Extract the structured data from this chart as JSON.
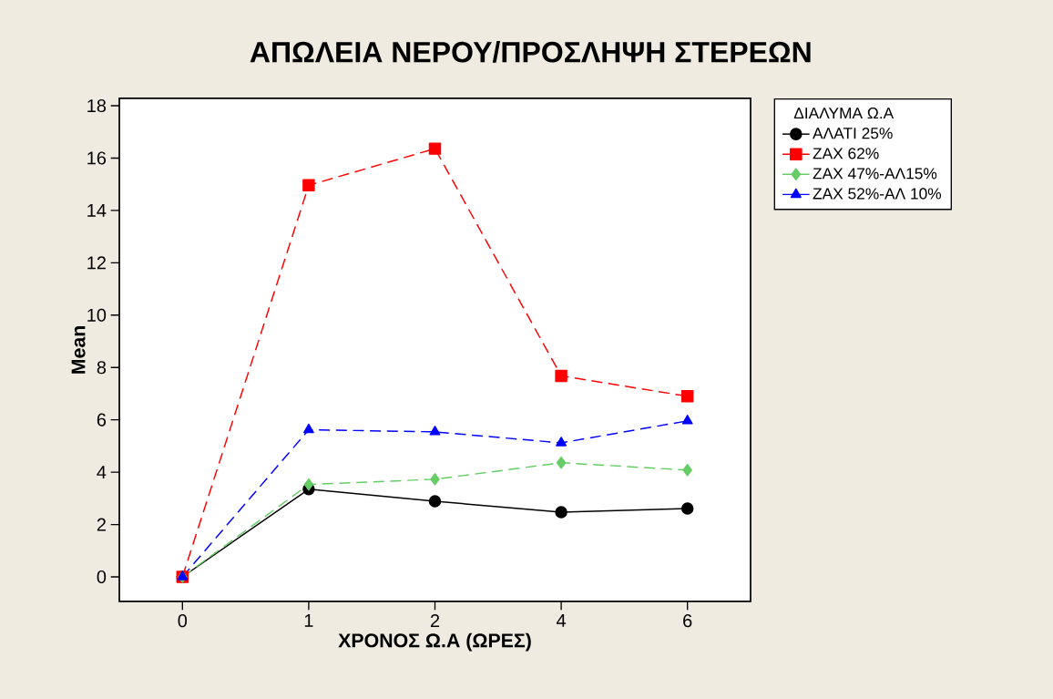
{
  "chart_data": {
    "type": "line",
    "title": "ΑΠΩΛΕΙΑ ΝΕΡΟΥ/ΠΡΟΣΛΗΨΗ ΣΤΕΡΕΩΝ",
    "xlabel": "ΧΡΟΝΟΣ Ω.Α (ΩΡΕΣ)",
    "ylabel": "Mean",
    "legend_title": "ΔΙΑΛΥΜΑ Ω.Α",
    "categories": [
      "0",
      "1",
      "2",
      "4",
      "6"
    ],
    "ylim": [
      -0.94,
      18.28
    ],
    "yticks": [
      0,
      2,
      4,
      6,
      8,
      10,
      12,
      14,
      16,
      18
    ],
    "grid": false,
    "legend": "top right",
    "series": [
      {
        "name": "ΑΛΑΤΙ 25%",
        "color": "#000000",
        "marker": "circle",
        "line_style": "solid",
        "values": [
          0,
          3.35,
          2.89,
          2.47,
          2.61
        ]
      },
      {
        "name": "ΖΑΧ    62%",
        "color": "#ff0000",
        "marker": "square",
        "line_style": "dashed",
        "values": [
          0,
          14.96,
          16.36,
          7.68,
          6.9
        ]
      },
      {
        "name": "ΖΑΧ 47%-ΑΛ15%",
        "color": "#66cc66",
        "marker": "diamond",
        "line_style": "dashed",
        "values": [
          0,
          3.53,
          3.73,
          4.36,
          4.08
        ]
      },
      {
        "name": "ΖΑΧ 52%-ΑΛ 10%",
        "color": "#0000ff",
        "marker": "triangle",
        "line_style": "dashed",
        "values": [
          0,
          5.62,
          5.54,
          5.12,
          5.96
        ]
      }
    ]
  }
}
